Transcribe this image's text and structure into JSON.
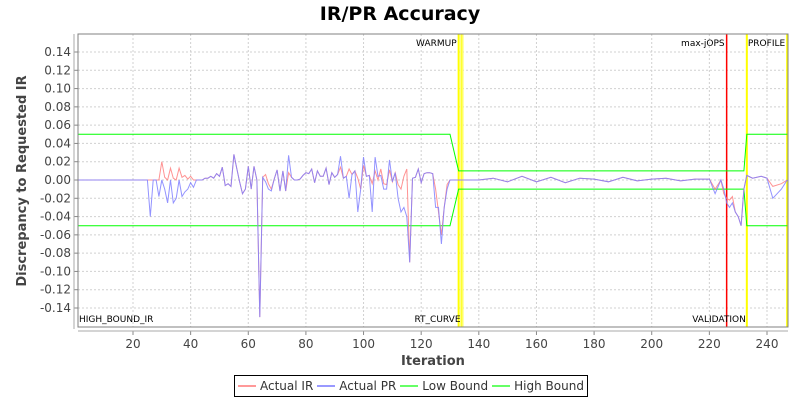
{
  "chart_data": {
    "type": "line",
    "title": "IR/PR Accuracy",
    "xlabel": "Iteration",
    "ylabel": "Discrepancy to Requested IR",
    "xlim": [
      1,
      247
    ],
    "ylim": [
      -0.155,
      0.155
    ],
    "x_ticks": [
      "20",
      "40",
      "60",
      "80",
      "100",
      "120",
      "140",
      "160",
      "180",
      "200",
      "220",
      "240"
    ],
    "y_ticks": [
      "0.14",
      "0.12",
      "0.10",
      "0.08",
      "0.06",
      "0.04",
      "0.02",
      "0.00",
      "-0.02",
      "-0.04",
      "-0.06",
      "-0.08",
      "-0.10",
      "-0.12",
      "-0.14"
    ],
    "grid": true,
    "legend_position": "bottom",
    "markers": [
      {
        "label": "WARMUP",
        "x": 133,
        "color": "#ffff00",
        "label_pos": "top"
      },
      {
        "label": "RT_CURVE",
        "x": 134,
        "color": "#ffff00",
        "label_pos": "bottom"
      },
      {
        "label": "max-jOPS",
        "x": 226,
        "color": "#ff0000",
        "label_pos": "top"
      },
      {
        "label": "VALIDATION",
        "x": 233,
        "color": "#ffff00",
        "label_pos": "bottom"
      },
      {
        "label": "PROFILE",
        "x": 247,
        "color": "#ffff00",
        "label_pos": "top"
      },
      {
        "label": "HIGH_BOUND_IR",
        "x": 1,
        "color": "#808040",
        "label_pos": "bottom"
      }
    ],
    "series": [
      {
        "name": "Actual IR",
        "color": "#ff8080",
        "points": [
          [
            1,
            0
          ],
          [
            25,
            0
          ],
          [
            26,
            0
          ],
          [
            27,
            0
          ],
          [
            28,
            0
          ],
          [
            29,
            0
          ],
          [
            30,
            0.02
          ],
          [
            31,
            0.003
          ],
          [
            32,
            0
          ],
          [
            33,
            0.013
          ],
          [
            34,
            0.002
          ],
          [
            35,
            0
          ],
          [
            36,
            0.013
          ],
          [
            37,
            0.003
          ],
          [
            38,
            0.005
          ],
          [
            39,
            0.001
          ],
          [
            40,
            0.004
          ],
          [
            41,
            0
          ],
          [
            42,
            0
          ],
          [
            43,
            0
          ],
          [
            44,
            0
          ],
          [
            45,
            0.002
          ],
          [
            46,
            0.002
          ],
          [
            47,
            0.004
          ],
          [
            48,
            0.002
          ],
          [
            49,
            0.007
          ],
          [
            50,
            0.004
          ],
          [
            51,
            0.014
          ],
          [
            52,
            -0.006
          ],
          [
            53,
            -0.004
          ],
          [
            54,
            -0.007
          ],
          [
            55,
            0.028
          ],
          [
            56,
            0.013
          ],
          [
            57,
            -0.002
          ],
          [
            58,
            -0.015
          ],
          [
            59,
            -0.01
          ],
          [
            60,
            0.015
          ],
          [
            61,
            -0.01
          ],
          [
            62,
            0.015
          ],
          [
            63,
            0
          ],
          [
            64,
            -0.15
          ],
          [
            65,
            0.003
          ],
          [
            66,
            0.006
          ],
          [
            67,
            -0.004
          ],
          [
            68,
            -0.01
          ],
          [
            69,
            0.001
          ],
          [
            70,
            0.011
          ],
          [
            71,
            -0.012
          ],
          [
            72,
            0.01
          ],
          [
            73,
            -0.012
          ],
          [
            74,
            0.008
          ],
          [
            75,
            0.003
          ],
          [
            76,
            0
          ],
          [
            77,
            0
          ],
          [
            78,
            0.001
          ],
          [
            79,
            0.005
          ],
          [
            80,
            0.008
          ],
          [
            81,
            0.007
          ],
          [
            82,
            0.012
          ],
          [
            83,
            -0.003
          ],
          [
            84,
            0.01
          ],
          [
            85,
            0.004
          ],
          [
            86,
            0.004
          ],
          [
            87,
            0.013
          ],
          [
            88,
            -0.005
          ],
          [
            89,
            0.008
          ],
          [
            90,
            0.003
          ],
          [
            91,
            0.006
          ],
          [
            92,
            0.014
          ],
          [
            93,
            0.002
          ],
          [
            94,
            0.004
          ],
          [
            95,
            0.012
          ],
          [
            96,
            0.006
          ],
          [
            97,
            0.01
          ],
          [
            98,
            0.002
          ],
          [
            99,
            -0.01
          ],
          [
            100,
            0.016
          ],
          [
            101,
            0.004
          ],
          [
            102,
            0.005
          ],
          [
            103,
            -0.004
          ],
          [
            104,
            0.01
          ],
          [
            105,
            0
          ],
          [
            106,
            0.012
          ],
          [
            107,
            -0.004
          ],
          [
            108,
            -0.005
          ],
          [
            109,
            0.011
          ],
          [
            110,
            -0.002
          ],
          [
            111,
            0.008
          ],
          [
            112,
            -0.005
          ],
          [
            113,
            -0.01
          ],
          [
            114,
            0.004
          ],
          [
            115,
            0.012
          ],
          [
            116,
            -0.09
          ],
          [
            117,
            0.002
          ],
          [
            118,
            0.003
          ],
          [
            119,
            0.012
          ],
          [
            120,
            -0.003
          ],
          [
            121,
            0.007
          ],
          [
            122,
            0.008
          ],
          [
            123,
            0.008
          ],
          [
            124,
            0.007
          ],
          [
            125,
            -0.01
          ],
          [
            126,
            -0.035
          ],
          [
            127,
            -0.06
          ],
          [
            128,
            -0.03
          ],
          [
            129,
            -0.005
          ],
          [
            130,
            0
          ],
          [
            134,
            0
          ],
          [
            140,
            0
          ],
          [
            145,
            0.002
          ],
          [
            150,
            -0.002
          ],
          [
            155,
            0.004
          ],
          [
            160,
            -0.002
          ],
          [
            165,
            0.003
          ],
          [
            170,
            -0.003
          ],
          [
            175,
            0.002
          ],
          [
            180,
            0.001
          ],
          [
            185,
            -0.002
          ],
          [
            190,
            0.003
          ],
          [
            195,
            -0.001
          ],
          [
            200,
            0.001
          ],
          [
            205,
            0.002
          ],
          [
            210,
            -0.001
          ],
          [
            215,
            0.001
          ],
          [
            220,
            0.001
          ],
          [
            222,
            -0.01
          ],
          [
            224,
            0
          ],
          [
            225,
            -0.015
          ],
          [
            226,
            -0.02
          ],
          [
            227,
            -0.022
          ],
          [
            228,
            -0.018
          ],
          [
            229,
            -0.035
          ],
          [
            230,
            -0.04
          ],
          [
            231,
            -0.05
          ],
          [
            232,
            -0.01
          ],
          [
            233,
            0.005
          ],
          [
            235,
            0.002
          ],
          [
            238,
            0.004
          ],
          [
            240,
            0.002
          ],
          [
            242,
            -0.007
          ],
          [
            245,
            -0.004
          ],
          [
            247,
            0
          ]
        ]
      },
      {
        "name": "Actual PR",
        "color": "#8080ff",
        "points": [
          [
            1,
            0
          ],
          [
            25,
            0
          ],
          [
            26,
            -0.04
          ],
          [
            27,
            0
          ],
          [
            28,
            0
          ],
          [
            29,
            -0.018
          ],
          [
            30,
            0
          ],
          [
            31,
            -0.01
          ],
          [
            32,
            -0.025
          ],
          [
            33,
            0
          ],
          [
            34,
            -0.025
          ],
          [
            35,
            -0.02
          ],
          [
            36,
            0
          ],
          [
            37,
            -0.018
          ],
          [
            38,
            -0.013
          ],
          [
            39,
            -0.01
          ],
          [
            40,
            -0.003
          ],
          [
            41,
            -0.008
          ],
          [
            42,
            0
          ],
          [
            43,
            0
          ],
          [
            44,
            0
          ],
          [
            45,
            0.002
          ],
          [
            46,
            0.002
          ],
          [
            47,
            0.004
          ],
          [
            48,
            0.002
          ],
          [
            49,
            0.007
          ],
          [
            50,
            0.004
          ],
          [
            51,
            0.014
          ],
          [
            52,
            -0.006
          ],
          [
            53,
            -0.004
          ],
          [
            54,
            -0.007
          ],
          [
            55,
            0.028
          ],
          [
            56,
            0.013
          ],
          [
            57,
            -0.002
          ],
          [
            58,
            -0.015
          ],
          [
            59,
            -0.01
          ],
          [
            60,
            0.015
          ],
          [
            61,
            -0.01
          ],
          [
            62,
            0.015
          ],
          [
            63,
            0
          ],
          [
            64,
            -0.15
          ],
          [
            65,
            0.003
          ],
          [
            66,
            -0.002
          ],
          [
            67,
            -0.01
          ],
          [
            68,
            -0.012
          ],
          [
            69,
            0.001
          ],
          [
            70,
            0.011
          ],
          [
            71,
            -0.012
          ],
          [
            72,
            0.01
          ],
          [
            73,
            -0.012
          ],
          [
            74,
            0.027
          ],
          [
            75,
            0.003
          ],
          [
            76,
            0
          ],
          [
            77,
            0
          ],
          [
            78,
            0.001
          ],
          [
            79,
            0.005
          ],
          [
            80,
            0.008
          ],
          [
            81,
            0.007
          ],
          [
            82,
            0.012
          ],
          [
            83,
            -0.003
          ],
          [
            84,
            0.01
          ],
          [
            85,
            0.004
          ],
          [
            86,
            0.004
          ],
          [
            87,
            0.013
          ],
          [
            88,
            -0.005
          ],
          [
            89,
            0.008
          ],
          [
            90,
            0.003
          ],
          [
            91,
            0.006
          ],
          [
            92,
            0.026
          ],
          [
            93,
            0.002
          ],
          [
            94,
            0.004
          ],
          [
            95,
            -0.02
          ],
          [
            96,
            0.006
          ],
          [
            97,
            0.01
          ],
          [
            98,
            -0.035
          ],
          [
            99,
            -0.01
          ],
          [
            100,
            0.025
          ],
          [
            101,
            0.004
          ],
          [
            102,
            0.005
          ],
          [
            103,
            -0.035
          ],
          [
            104,
            0.025
          ],
          [
            105,
            0.004
          ],
          [
            106,
            0.005
          ],
          [
            107,
            -0.01
          ],
          [
            108,
            -0.01
          ],
          [
            109,
            0.022
          ],
          [
            110,
            -0.002
          ],
          [
            111,
            0.008
          ],
          [
            112,
            -0.02
          ],
          [
            113,
            -0.035
          ],
          [
            114,
            -0.03
          ],
          [
            115,
            -0.04
          ],
          [
            116,
            -0.09
          ],
          [
            117,
            0.002
          ],
          [
            118,
            0.003
          ],
          [
            119,
            0.012
          ],
          [
            120,
            -0.003
          ],
          [
            121,
            0.007
          ],
          [
            122,
            0.008
          ],
          [
            123,
            0.008
          ],
          [
            124,
            0.007
          ],
          [
            125,
            -0.03
          ],
          [
            126,
            -0.03
          ],
          [
            127,
            -0.07
          ],
          [
            128,
            -0.03
          ],
          [
            129,
            -0.01
          ],
          [
            130,
            0
          ],
          [
            134,
            0
          ],
          [
            140,
            0
          ],
          [
            145,
            0.002
          ],
          [
            150,
            -0.002
          ],
          [
            155,
            0.004
          ],
          [
            160,
            -0.002
          ],
          [
            165,
            0.003
          ],
          [
            170,
            -0.003
          ],
          [
            175,
            0.002
          ],
          [
            180,
            0.001
          ],
          [
            185,
            -0.002
          ],
          [
            190,
            0.003
          ],
          [
            195,
            -0.001
          ],
          [
            200,
            0.001
          ],
          [
            205,
            0.002
          ],
          [
            210,
            -0.001
          ],
          [
            215,
            0.001
          ],
          [
            220,
            0.001
          ],
          [
            222,
            -0.015
          ],
          [
            224,
            0
          ],
          [
            225,
            -0.01
          ],
          [
            226,
            -0.025
          ],
          [
            227,
            -0.03
          ],
          [
            228,
            -0.025
          ],
          [
            229,
            -0.035
          ],
          [
            230,
            -0.04
          ],
          [
            231,
            -0.05
          ],
          [
            232,
            -0.01
          ],
          [
            233,
            0.005
          ],
          [
            235,
            0.002
          ],
          [
            238,
            0.004
          ],
          [
            240,
            0.002
          ],
          [
            242,
            -0.02
          ],
          [
            245,
            -0.01
          ],
          [
            247,
            0
          ]
        ]
      },
      {
        "name": "Low Bound",
        "color": "#00ff00",
        "points": [
          [
            1,
            -0.05
          ],
          [
            130,
            -0.05
          ],
          [
            133,
            -0.01
          ],
          [
            232,
            -0.01
          ],
          [
            233,
            -0.05
          ],
          [
            247,
            -0.05
          ]
        ]
      },
      {
        "name": "High Bound",
        "color": "#00ff00",
        "points": [
          [
            1,
            0.05
          ],
          [
            130,
            0.05
          ],
          [
            133,
            0.01
          ],
          [
            232,
            0.01
          ],
          [
            233,
            0.05
          ],
          [
            247,
            0.05
          ]
        ]
      }
    ]
  },
  "legend": {
    "items": [
      {
        "label": "Actual IR",
        "color": "#ff8080"
      },
      {
        "label": "Actual PR",
        "color": "#8080ff"
      },
      {
        "label": "Low Bound",
        "color": "#00ff00"
      },
      {
        "label": "High Bound",
        "color": "#00ff00"
      }
    ]
  }
}
